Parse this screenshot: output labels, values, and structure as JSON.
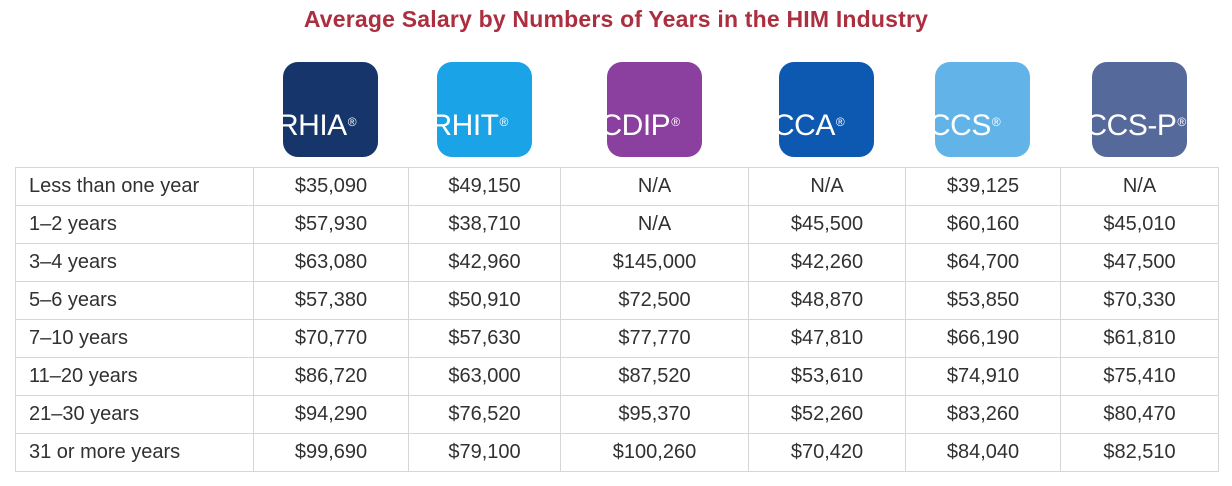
{
  "title": "Average Salary by Numbers of Years in the HIM Industry",
  "colors": {
    "title_red": "#ab2f3f",
    "table_border": "#d8d4da",
    "cell_text": "#313133"
  },
  "badges": [
    {
      "label": "RHIA",
      "reg": "®",
      "color": "#15356b",
      "icon": "rhia-credential-badge"
    },
    {
      "label": "RHIT",
      "reg": "®",
      "color": "#1aa3e6",
      "icon": "rhit-credential-badge"
    },
    {
      "label": "CDIP",
      "reg": "®",
      "color": "#8b3f9e",
      "icon": "cdip-credential-badge"
    },
    {
      "label": "CCA",
      "reg": "®",
      "color": "#0d58b0",
      "icon": "cca-credential-badge"
    },
    {
      "label": "CCS",
      "reg": "®",
      "color": "#62b3e8",
      "icon": "ccs-credential-badge"
    },
    {
      "label": "CCS-P",
      "reg": "®",
      "color": "#56699b",
      "icon": "ccs-p-credential-badge"
    }
  ],
  "rows": [
    {
      "label": "Less than one year",
      "cells": [
        "$35,090",
        "$49,150",
        "N/A",
        "N/A",
        "$39,125",
        "N/A"
      ]
    },
    {
      "label": "1–2 years",
      "cells": [
        "$57,930",
        "$38,710",
        "N/A",
        "$45,500",
        "$60,160",
        "$45,010"
      ]
    },
    {
      "label": "3–4 years",
      "cells": [
        "$63,080",
        "$42,960",
        "$145,000",
        "$42,260",
        "$64,700",
        "$47,500"
      ]
    },
    {
      "label": "5–6 years",
      "cells": [
        "$57,380",
        "$50,910",
        "$72,500",
        "$48,870",
        "$53,850",
        "$70,330"
      ]
    },
    {
      "label": "7–10 years",
      "cells": [
        "$70,770",
        "$57,630",
        "$77,770",
        "$47,810",
        "$66,190",
        "$61,810"
      ]
    },
    {
      "label": "11–20 years",
      "cells": [
        "$86,720",
        "$63,000",
        "$87,520",
        "$53,610",
        "$74,910",
        "$75,410"
      ]
    },
    {
      "label": "21–30 years",
      "cells": [
        "$94,290",
        "$76,520",
        "$95,370",
        "$52,260",
        "$83,260",
        "$80,470"
      ]
    },
    {
      "label": "31 or more years",
      "cells": [
        "$99,690",
        "$79,100",
        "$100,260",
        "$70,420",
        "$84,040",
        "$82,510"
      ]
    }
  ],
  "chart_data": {
    "type": "table",
    "title": "Average Salary by Numbers of Years in the HIM Industry",
    "columns": [
      "RHIA",
      "RHIT",
      "CDIP",
      "CCA",
      "CCS",
      "CCS-P"
    ],
    "categories": [
      "Less than one year",
      "1–2 years",
      "3–4 years",
      "5–6 years",
      "7–10 years",
      "11–20 years",
      "21–30 years",
      "31 or more years"
    ],
    "values_usd": [
      [
        35090,
        49150,
        null,
        null,
        39125,
        null
      ],
      [
        57930,
        38710,
        null,
        45500,
        60160,
        45010
      ],
      [
        63080,
        42960,
        145000,
        42260,
        64700,
        47500
      ],
      [
        57380,
        50910,
        72500,
        48870,
        53850,
        70330
      ],
      [
        70770,
        57630,
        77770,
        47810,
        66190,
        61810
      ],
      [
        86720,
        63000,
        87520,
        53610,
        74910,
        75410
      ],
      [
        94290,
        76520,
        95370,
        52260,
        83260,
        80470
      ],
      [
        99690,
        79100,
        100260,
        70420,
        84040,
        82510
      ]
    ],
    "na_display": "N/A",
    "legend_position": "top",
    "grid": true
  }
}
